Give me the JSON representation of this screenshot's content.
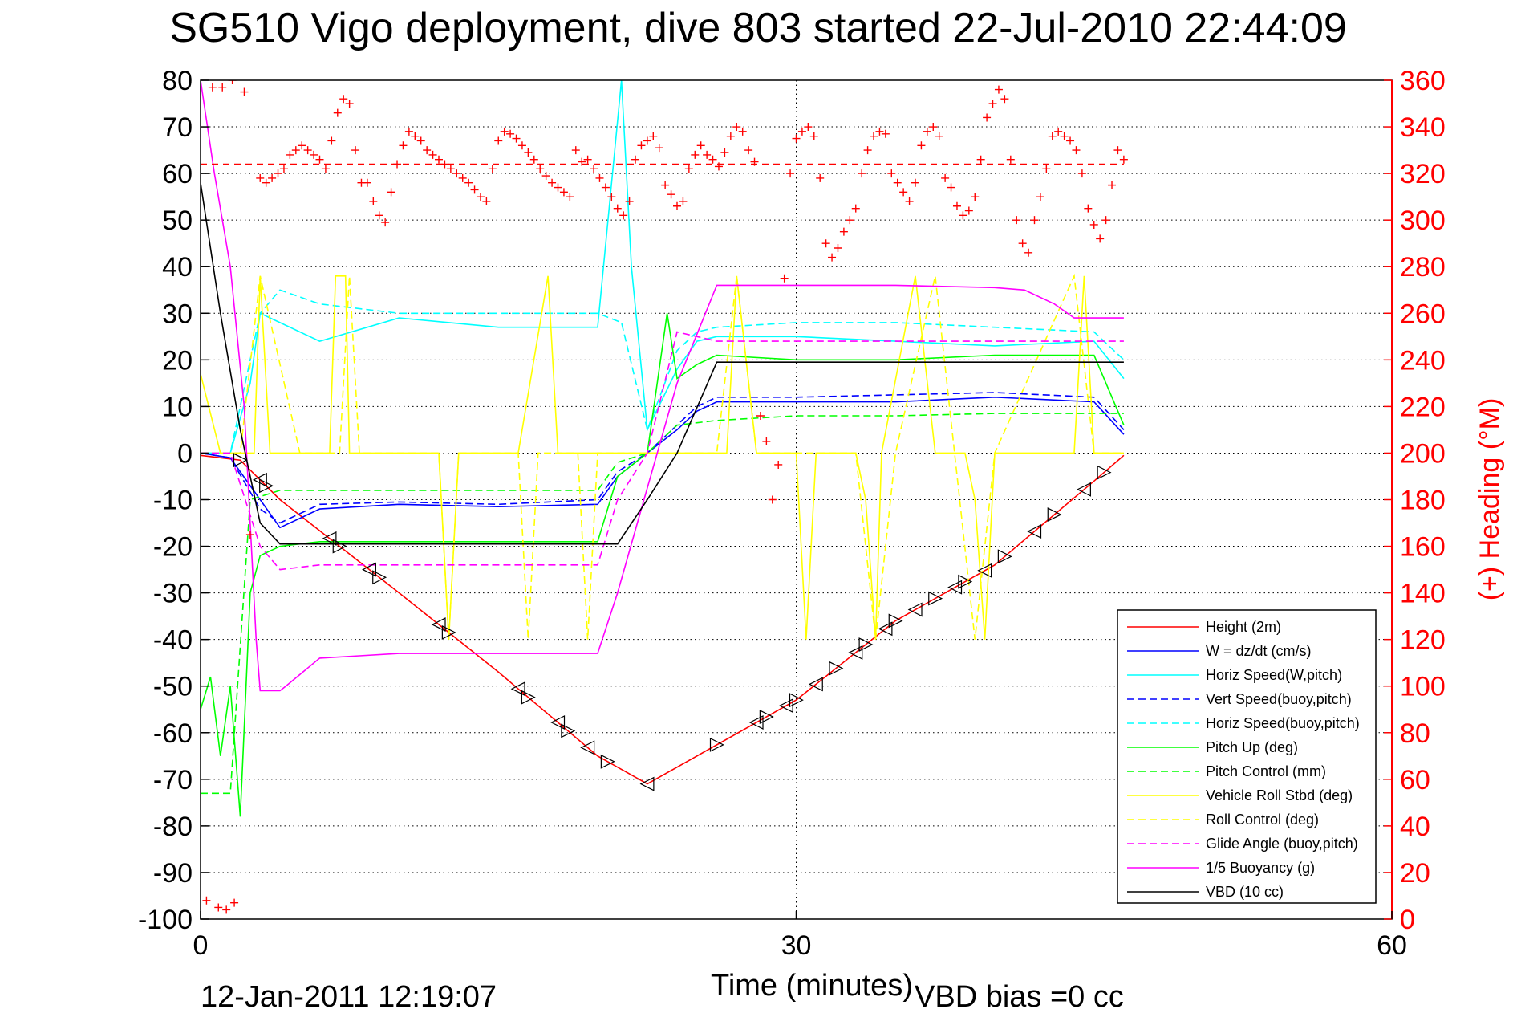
{
  "chart_data": {
    "type": "line",
    "title": "SG510 Vigo deployment, dive 803 started 22-Jul-2010 22:44:09",
    "xlabel": "Time (minutes)",
    "ylabel_right": "(+) Heading (°M)",
    "xlim": [
      0,
      60
    ],
    "ylim_left": [
      -100,
      80
    ],
    "ylim_right": [
      0,
      360
    ],
    "x_ticks": [
      "0",
      "30",
      "60"
    ],
    "y_left_ticks": [
      "80",
      "70",
      "60",
      "50",
      "40",
      "30",
      "20",
      "10",
      "0",
      "-10",
      "-20",
      "-30",
      "-40",
      "-50",
      "-60",
      "-70",
      "-80",
      "-90",
      "-100"
    ],
    "y_right_ticks": [
      "360",
      "340",
      "320",
      "300",
      "280",
      "260",
      "240",
      "220",
      "200",
      "180",
      "160",
      "140",
      "120",
      "100",
      "80",
      "60",
      "40",
      "20",
      "0"
    ],
    "grid": true,
    "legend_position": "bottom-right",
    "footer_left": "12-Jan-2011 12:19:07",
    "footer_right": "VBD bias =0 cc",
    "series": [
      {
        "name": "Height (2m)",
        "color": "#ff0000",
        "style": "solid",
        "x": [
          0,
          2,
          4,
          10,
          15,
          20,
          22.5,
          25,
          30,
          35,
          40,
          45,
          46.5
        ],
        "y": [
          -0.5,
          -1.5,
          -10,
          -30,
          -47,
          -65,
          -71,
          -65,
          -53,
          -36,
          -24,
          -6,
          -0.5
        ]
      },
      {
        "name": "W = dz/dt (cm/s)",
        "color": "#0000ff",
        "style": "solid",
        "x": [
          0,
          1.5,
          3,
          4,
          6,
          10,
          15,
          20,
          21,
          22.5,
          24,
          25,
          26,
          30,
          35,
          40,
          45,
          46.5
        ],
        "y": [
          0,
          -1,
          -10,
          -16,
          -12,
          -11,
          -11.5,
          -11,
          -5,
          0,
          5,
          9,
          11,
          11,
          11,
          12,
          11,
          4
        ]
      },
      {
        "name": "Horiz Speed(W,pitch)",
        "color": "#00ffff",
        "style": "solid",
        "x": [
          0,
          1.5,
          2.5,
          3,
          4,
          6,
          10,
          15,
          20,
          21.2,
          21.7,
          22.5,
          24,
          25,
          26,
          30,
          35,
          40,
          45,
          46.5
        ],
        "y": [
          0,
          0,
          15,
          30,
          28,
          24,
          29,
          27,
          27,
          80,
          40,
          5,
          18,
          24,
          25,
          25,
          24,
          23,
          24,
          16
        ]
      },
      {
        "name": "Vert Speed(buoy,pitch)",
        "color": "#0000ff",
        "style": "dashed",
        "x": [
          0,
          1.5,
          3,
          4,
          6,
          10,
          15,
          20,
          21,
          22.5,
          24,
          25,
          26,
          30,
          35,
          40,
          45,
          46.5
        ],
        "y": [
          0,
          -1,
          -12,
          -15,
          -11,
          -10.5,
          -11,
          -10,
          -4,
          0,
          6,
          10,
          12,
          12,
          12.5,
          13,
          12,
          5
        ]
      },
      {
        "name": "Horiz Speed(buoy,pitch)",
        "color": "#00ffff",
        "style": "dashed",
        "x": [
          0,
          1.5,
          3,
          4,
          6,
          10,
          15,
          20,
          21.2,
          22.5,
          24,
          25,
          26,
          30,
          35,
          40,
          45,
          46.5
        ],
        "y": [
          0,
          0,
          30,
          35,
          32,
          30,
          30,
          30,
          28,
          5,
          22,
          26,
          27,
          28,
          28,
          27,
          26,
          20
        ]
      },
      {
        "name": "Pitch Up (deg)",
        "color": "#00ff00",
        "style": "solid",
        "x": [
          0,
          0.5,
          1,
          1.5,
          2,
          2.5,
          3,
          4,
          6,
          10,
          15,
          20,
          21,
          22.5,
          23.5,
          24,
          25,
          26,
          30,
          35,
          40,
          45,
          46.5
        ],
        "y": [
          -55,
          -48,
          -65,
          -50,
          -78,
          -30,
          -22,
          -20,
          -19,
          -19,
          -19,
          -19,
          -5,
          0,
          30,
          16,
          19,
          21,
          20,
          20,
          21,
          21,
          6
        ]
      },
      {
        "name": "Pitch Control (mm)",
        "color": "#00ff00",
        "style": "dashed",
        "x": [
          0,
          1.5,
          2.5,
          4,
          10,
          15,
          20,
          21,
          22.5,
          24,
          26,
          30,
          35,
          40,
          45,
          46.5
        ],
        "y": [
          -73,
          -73,
          -10,
          -8,
          -8,
          -8,
          -8,
          -2,
          0,
          6,
          7,
          8,
          8,
          8.5,
          8.5,
          8.5
        ]
      },
      {
        "name": "Vehicle Roll Stbd (deg)",
        "color": "#ffff00",
        "style": "solid",
        "x": [
          0,
          1,
          2,
          2.7,
          3,
          3.5,
          4,
          5,
          6.5,
          6.8,
          7.3,
          7.5,
          8,
          12,
          12.5,
          13,
          14,
          16,
          17.5,
          18,
          18.5,
          20,
          22,
          26.5,
          27,
          28,
          29,
          30,
          30.5,
          31,
          33,
          33.5,
          34,
          34.3,
          36,
          37,
          38.5,
          39,
          39.5,
          40,
          44,
          44.5,
          45,
          46.5
        ],
        "y": [
          17,
          0,
          0,
          0,
          38,
          0,
          0,
          0,
          0,
          38,
          38,
          0,
          0,
          0,
          -40,
          0,
          0,
          0,
          38,
          0,
          0,
          0,
          0,
          0,
          38,
          0,
          0,
          0,
          -40,
          0,
          0,
          -10,
          -40,
          0,
          38,
          0,
          0,
          -10,
          -40,
          0,
          0,
          38,
          0,
          0
        ]
      },
      {
        "name": "Roll Control (deg)",
        "color": "#ffff00",
        "style": "dashed",
        "x": [
          0,
          1,
          2,
          3,
          5,
          7,
          7.5,
          8,
          12,
          12.5,
          13,
          15,
          16,
          16.5,
          17,
          19,
          19.5,
          20,
          22,
          26,
          27,
          28,
          30,
          31,
          33,
          34,
          35,
          37,
          39,
          40,
          44,
          45,
          46.5
        ],
        "y": [
          0,
          0,
          0,
          38,
          0,
          0,
          38,
          0,
          0,
          -40,
          0,
          0,
          0,
          -40,
          0,
          0,
          -40,
          0,
          0,
          0,
          38,
          0,
          0,
          0,
          0,
          -40,
          0,
          38,
          -40,
          0,
          38,
          0,
          0
        ]
      },
      {
        "name": "Glide Angle (buoy,pitch)",
        "color": "#ff00ff",
        "style": "dashed",
        "x": [
          0,
          1.5,
          3,
          4,
          6,
          10,
          15,
          20,
          21,
          22.5,
          24,
          25,
          26,
          30,
          35,
          40,
          45,
          46.5
        ],
        "y": [
          0,
          0,
          -20,
          -25,
          -24,
          -24,
          -24,
          -24,
          -10,
          0,
          26,
          25,
          24,
          24,
          24,
          24,
          24,
          24
        ]
      },
      {
        "name": "1/5 Buoyancy (g)",
        "color": "#ff00ff",
        "style": "solid",
        "x": [
          0,
          0.7,
          1.5,
          2.2,
          2.8,
          3,
          4,
          4.3,
          6,
          8,
          10,
          15,
          20,
          21,
          22,
          23,
          24,
          26,
          30,
          35,
          40,
          41.5,
          43,
          44,
          45,
          46.5
        ],
        "y": [
          80,
          60,
          40,
          10,
          -40,
          -51,
          -51,
          -50,
          -44,
          -43.5,
          -43,
          -43,
          -43,
          -30,
          -15,
          0,
          15,
          36,
          36,
          36,
          35.5,
          35,
          32,
          29,
          29,
          29
        ]
      },
      {
        "name": "VBD (10 cc)",
        "color": "#000000",
        "style": "solid",
        "x": [
          0,
          1,
          2,
          3,
          4,
          10,
          15,
          21,
          22.5,
          24,
          26,
          27,
          30,
          35,
          40,
          45,
          46.5
        ],
        "y": [
          58,
          30,
          5,
          -15,
          -19.5,
          -19.5,
          -19.5,
          -19.5,
          -10,
          0,
          19.5,
          19.5,
          19.5,
          19.5,
          19.5,
          19.5,
          19.5
        ]
      }
    ],
    "heading_series": {
      "color": "#ff0000",
      "marker": "+",
      "reference_heading": 324,
      "x": [
        0.6,
        1.1,
        1.6,
        2.2,
        2.5,
        0.3,
        0.9,
        1.3,
        1.7,
        3,
        3.3,
        3.6,
        3.9,
        4.2,
        4.5,
        4.8,
        5.1,
        5.4,
        5.7,
        6,
        6.3,
        6.6,
        6.9,
        7.2,
        7.5,
        7.8,
        8.1,
        8.4,
        8.7,
        9,
        9.3,
        9.6,
        9.9,
        10.2,
        10.5,
        10.8,
        11.1,
        11.4,
        11.7,
        12,
        12.3,
        12.6,
        12.9,
        13.2,
        13.5,
        13.8,
        14.1,
        14.4,
        14.7,
        15,
        15.3,
        15.6,
        15.9,
        16.2,
        16.5,
        16.8,
        17.1,
        17.4,
        17.7,
        18,
        18.3,
        18.6,
        18.9,
        19.2,
        19.5,
        19.8,
        20.1,
        20.4,
        20.7,
        21,
        21.3,
        21.6,
        21.9,
        22.2,
        22.5,
        22.8,
        23.1,
        23.4,
        23.7,
        24,
        24.3,
        24.6,
        24.9,
        25.2,
        25.5,
        25.8,
        26.1,
        26.4,
        26.7,
        27,
        27.3,
        27.6,
        27.9,
        28.2,
        28.5,
        28.8,
        29.1,
        29.4,
        29.7,
        30,
        30.3,
        30.6,
        30.9,
        31.2,
        31.5,
        31.8,
        32.1,
        32.4,
        32.7,
        33,
        33.3,
        33.6,
        33.9,
        34.2,
        34.5,
        34.8,
        35.1,
        35.4,
        35.7,
        36,
        36.3,
        36.6,
        36.9,
        37.2,
        37.5,
        37.8,
        38.1,
        38.4,
        38.7,
        39,
        39.3,
        39.6,
        39.9,
        40.2,
        40.5,
        40.8,
        41.1,
        41.4,
        41.7,
        42,
        42.3,
        42.6,
        42.9,
        43.2,
        43.5,
        43.8,
        44.1,
        44.4,
        44.7,
        45,
        45.3,
        45.6,
        45.9,
        46.2,
        46.5
      ],
      "y": [
        357,
        357,
        360,
        355,
        165,
        8,
        5,
        4,
        7,
        318,
        316,
        318,
        320,
        322,
        328,
        330,
        332,
        330,
        328,
        326,
        322,
        334,
        346,
        352,
        350,
        330,
        316,
        316,
        308,
        302,
        299,
        312,
        324,
        332,
        338,
        336,
        334,
        330,
        328,
        326,
        324,
        322,
        320,
        318,
        316,
        313,
        310,
        308,
        322,
        334,
        338,
        337,
        335,
        332,
        329,
        326,
        322,
        319,
        316,
        314,
        312,
        310,
        330,
        325,
        326,
        322,
        318,
        314,
        310,
        305,
        302,
        308,
        326,
        332,
        334,
        336,
        331,
        315,
        311,
        306,
        308,
        322,
        328,
        332,
        328,
        326,
        323,
        329,
        336,
        340,
        338,
        330,
        325,
        216,
        205,
        180,
        195,
        275,
        320,
        335,
        338,
        340,
        336,
        318,
        290,
        284,
        288,
        295,
        300,
        305,
        320,
        330,
        336,
        338,
        337,
        320,
        316,
        312,
        308,
        316,
        332,
        338,
        340,
        336,
        318,
        314,
        306,
        302,
        304,
        310,
        326,
        344,
        350,
        356,
        352,
        326,
        300,
        290,
        286,
        300,
        310,
        322,
        336,
        338,
        336,
        334,
        330,
        320,
        305,
        298,
        292,
        300,
        315,
        330,
        326
      ]
    }
  }
}
